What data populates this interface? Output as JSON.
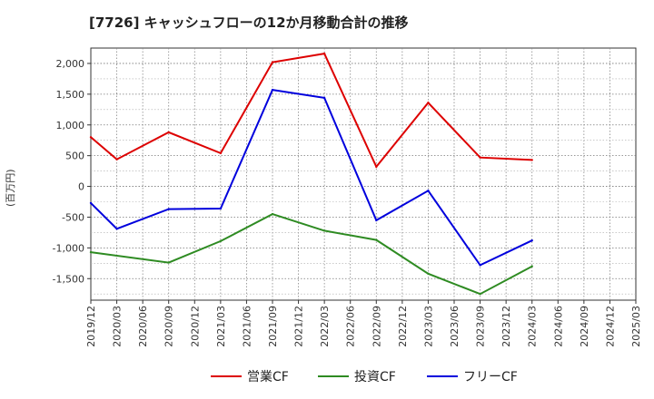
{
  "chart_data": {
    "type": "line",
    "title": "[7726]  キャッシュフローの12か月移動合計の推移",
    "ylabel": "(百万円)",
    "xlabel": "",
    "ylim": [
      -1850,
      2250
    ],
    "yticks": [
      2000,
      1500,
      1000,
      500,
      0,
      -500,
      -1000,
      -1500
    ],
    "ytick_labels": [
      "2,000",
      "1,500",
      "1,000",
      "500",
      "0",
      "-500",
      "-1,000",
      "-1,500"
    ],
    "categories": [
      "2019/12",
      "2020/03",
      "2020/06",
      "2020/09",
      "2020/12",
      "2021/03",
      "2021/06",
      "2021/09",
      "2021/12",
      "2022/03",
      "2022/06",
      "2022/09",
      "2022/12",
      "2023/03",
      "2023/06",
      "2023/09",
      "2023/12",
      "2024/03",
      "2024/06",
      "2024/09",
      "2024/12",
      "2025/03"
    ],
    "grid": true,
    "legend_position": "bottom",
    "series": [
      {
        "name": "営業CF",
        "color": "#dd0000",
        "values": [
          800,
          440,
          null,
          880,
          null,
          540,
          null,
          2020,
          null,
          2160,
          null,
          320,
          null,
          1360,
          null,
          470,
          null,
          430,
          null,
          null,
          null,
          null
        ]
      },
      {
        "name": "投資CF",
        "color": "#2e8b22",
        "values": [
          -1070,
          null,
          null,
          -1240,
          null,
          -890,
          null,
          -450,
          null,
          -720,
          null,
          -870,
          null,
          -1420,
          null,
          -1750,
          null,
          -1300,
          null,
          null,
          null,
          null
        ]
      },
      {
        "name": "フリーCF",
        "color": "#0000dd",
        "values": [
          -270,
          -690,
          null,
          -370,
          null,
          -360,
          null,
          1570,
          null,
          1440,
          null,
          -550,
          null,
          -70,
          null,
          -1280,
          null,
          -880,
          null,
          null,
          null,
          null
        ]
      }
    ]
  }
}
